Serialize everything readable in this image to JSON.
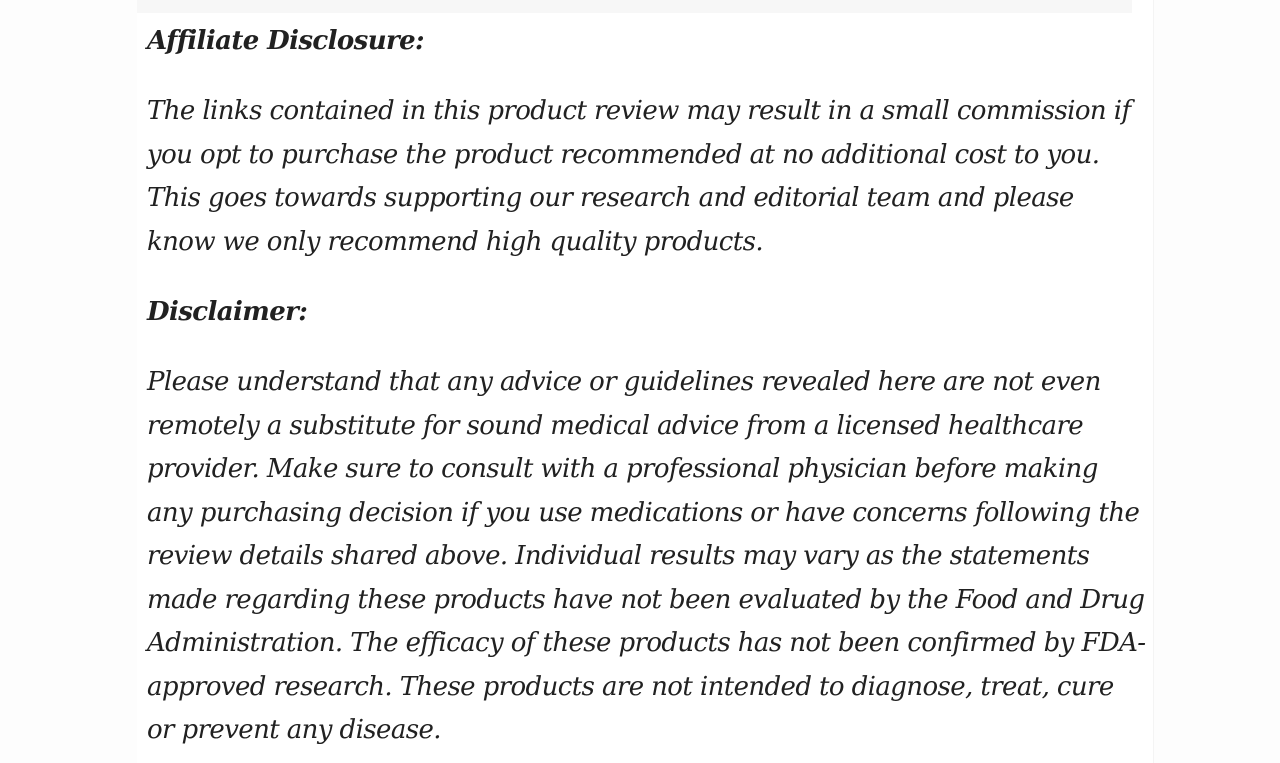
{
  "page": {
    "background_color": "#fdfdfd",
    "content_background_color": "#ffffff",
    "text_color": "#212121",
    "divider_color": "#f7f7f7"
  },
  "article": {
    "sections": [
      {
        "heading": "Affiliate Disclosure:",
        "paragraph": "The links contained in this product review may result in a small commission if you opt to purchase the product recommended at no additional cost to you. This goes towards supporting our research and editorial team and please know we only recommend high quality products."
      },
      {
        "heading": "Disclaimer:",
        "paragraph": "Please understand that any advice or guidelines revealed here are not even remotely a substitute for sound medical advice from a licensed healthcare provider. Make sure to consult with a professional physician before making any purchasing decision if you use medications or have concerns following the review details shared above. Individual results may vary as the statements made regarding these products have not been evaluated by the Food and Drug Administration. The efficacy of these products has not been confirmed by FDA-approved research. These products are not intended to diagnose, treat, cure or prevent any disease."
      }
    ]
  }
}
